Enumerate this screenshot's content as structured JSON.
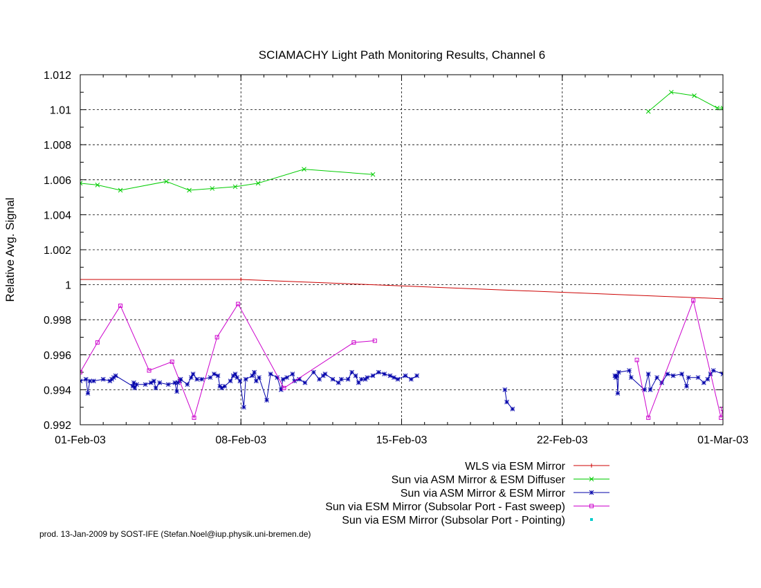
{
  "chart_data": {
    "type": "line",
    "title": "SCIAMACHY Light Path Monitoring Results, Channel 6",
    "xlabel": "",
    "ylabel": "Relative Avg. Signal",
    "x_type": "date",
    "xlim": [
      "2003-02-01",
      "2003-03-01"
    ],
    "ylim": [
      0.992,
      1.012
    ],
    "x_tick_labels": [
      "01-Feb-03",
      "08-Feb-03",
      "15-Feb-03",
      "22-Feb-03",
      "01-Mar-03"
    ],
    "x_tick_values": [
      "2003-02-01",
      "2003-02-08",
      "2003-02-15",
      "2003-02-22",
      "2003-03-01"
    ],
    "y_ticks": [
      0.992,
      0.994,
      0.996,
      0.998,
      1,
      1.002,
      1.004,
      1.006,
      1.008,
      1.01,
      1.012
    ],
    "y_tick_labels": [
      "0.992",
      "0.994",
      "0.996",
      "0.998",
      "1",
      "1.002",
      "1.004",
      "1.006",
      "1.008",
      "1.01",
      "1.012"
    ],
    "grid": true,
    "legend_position": "bottom-right",
    "series": [
      {
        "name": "WLS via ESM Mirror",
        "color": "#cc0000",
        "marker": "plus",
        "points": [
          [
            "2003-02-01 00:00",
            1.0003
          ],
          [
            "2003-02-08 00:00",
            1.0003
          ],
          [
            "2003-03-01 00:00",
            0.9992
          ]
        ]
      },
      {
        "name": "Sun via ASM Mirror & ESM Diffuser",
        "color": "#00cc00",
        "marker": "x",
        "segments": [
          [
            [
              "2003-02-01 00:00",
              1.0058
            ],
            [
              "2003-02-01 18:00",
              1.0057
            ],
            [
              "2003-02-02 18:00",
              1.0054
            ],
            [
              "2003-02-04 18:00",
              1.0059
            ],
            [
              "2003-02-05 18:00",
              1.0054
            ],
            [
              "2003-02-06 18:00",
              1.0055
            ],
            [
              "2003-02-07 18:00",
              1.0056
            ],
            [
              "2003-02-08 18:00",
              1.0058
            ],
            [
              "2003-02-10 18:00",
              1.0066
            ],
            [
              "2003-02-13 18:00",
              1.0063
            ]
          ],
          [
            [
              "2003-02-25 18:00",
              1.0099
            ],
            [
              "2003-02-26 18:00",
              1.011
            ],
            [
              "2003-02-27 18:00",
              1.0108
            ],
            [
              "2003-02-28 18:00",
              1.0101
            ],
            [
              "2003-03-01 00:00",
              1.0101
            ]
          ]
        ]
      },
      {
        "name": "Sun via ASM Mirror & ESM Mirror",
        "color": "#0000aa",
        "marker": "star",
        "segments": [
          [
            [
              "2003-02-01 00:00",
              0.9945
            ],
            [
              "2003-02-01 06:00",
              0.9946
            ],
            [
              "2003-02-01 08:00",
              0.9938
            ],
            [
              "2003-02-01 10:00",
              0.9945
            ],
            [
              "2003-02-01 14:00",
              0.9945
            ],
            [
              "2003-02-02 00:00",
              0.9946
            ],
            [
              "2003-02-02 07:00",
              0.9945
            ],
            [
              "2003-02-02 09:00",
              0.9946
            ],
            [
              "2003-02-02 11:00",
              0.9947
            ],
            [
              "2003-02-02 13:00",
              0.9948
            ],
            [
              "2003-02-03 07:00",
              0.9942
            ],
            [
              "2003-02-03 08:00",
              0.9944
            ],
            [
              "2003-02-03 09:00",
              0.9941
            ],
            [
              "2003-02-03 11:00",
              0.9943
            ],
            [
              "2003-02-03 20:00",
              0.9943
            ],
            [
              "2003-02-04 02:00",
              0.9944
            ],
            [
              "2003-02-04 05:00",
              0.9945
            ],
            [
              "2003-02-04 07:00",
              0.9941
            ],
            [
              "2003-02-04 11:00",
              0.9944
            ],
            [
              "2003-02-04 20:00",
              0.9943
            ],
            [
              "2003-02-05 03:00",
              0.9944
            ],
            [
              "2003-02-05 05:00",
              0.9939
            ],
            [
              "2003-02-05 06:00",
              0.9944
            ],
            [
              "2003-02-05 08:00",
              0.9945
            ],
            [
              "2003-02-05 09:00",
              0.9946
            ],
            [
              "2003-02-05 16:00",
              0.9943
            ],
            [
              "2003-02-05 20:00",
              0.9947
            ],
            [
              "2003-02-05 22:00",
              0.9949
            ],
            [
              "2003-02-06 02:00",
              0.9946
            ],
            [
              "2003-02-06 07:00",
              0.9946
            ],
            [
              "2003-02-06 16:00",
              0.9947
            ],
            [
              "2003-02-06 20:00",
              0.9949
            ],
            [
              "2003-02-07 00:00",
              0.9948
            ],
            [
              "2003-02-07 02:00",
              0.9942
            ],
            [
              "2003-02-07 04:00",
              0.9941
            ],
            [
              "2003-02-07 07:00",
              0.9942
            ],
            [
              "2003-02-07 13:00",
              0.9945
            ],
            [
              "2003-02-07 16:00",
              0.9948
            ],
            [
              "2003-02-07 18:00",
              0.9949
            ],
            [
              "2003-02-07 20:00",
              0.9947
            ],
            [
              "2003-02-07 23:00",
              0.9945
            ],
            [
              "2003-02-08 03:00",
              0.993
            ],
            [
              "2003-02-08 05:00",
              0.9946
            ],
            [
              "2003-02-08 12:00",
              0.9948
            ],
            [
              "2003-02-08 14:00",
              0.995
            ],
            [
              "2003-02-08 16:00",
              0.9945
            ],
            [
              "2003-02-08 19:00",
              0.9947
            ],
            [
              "2003-02-09 03:00",
              0.9934
            ],
            [
              "2003-02-09 07:00",
              0.9949
            ],
            [
              "2003-02-09 14:00",
              0.9947
            ],
            [
              "2003-02-09 18:00",
              0.994
            ],
            [
              "2003-02-09 20:00",
              0.9946
            ],
            [
              "2003-02-10 00:00",
              0.9947
            ],
            [
              "2003-02-10 06:00",
              0.9949
            ],
            [
              "2003-02-10 08:00",
              0.9945
            ],
            [
              "2003-02-10 13:00",
              0.9946
            ],
            [
              "2003-02-10 19:00",
              0.9944
            ],
            [
              "2003-02-11 04:00",
              0.995
            ],
            [
              "2003-02-11 10:00",
              0.9946
            ],
            [
              "2003-02-11 14:00",
              0.9948
            ],
            [
              "2003-02-11 16:00",
              0.9949
            ],
            [
              "2003-02-12 00:00",
              0.9946
            ],
            [
              "2003-02-12 06:00",
              0.9944
            ],
            [
              "2003-02-12 09:00",
              0.9946
            ],
            [
              "2003-02-12 16:00",
              0.9946
            ],
            [
              "2003-02-12 20:00",
              0.995
            ],
            [
              "2003-02-13 00:00",
              0.9948
            ],
            [
              "2003-02-13 03:00",
              0.9944
            ],
            [
              "2003-02-13 06:00",
              0.9946
            ],
            [
              "2003-02-13 10:00",
              0.9946
            ],
            [
              "2003-02-13 12:00",
              0.9947
            ],
            [
              "2003-02-13 18:00",
              0.9948
            ],
            [
              "2003-02-14 00:00",
              0.995
            ],
            [
              "2003-02-14 06:00",
              0.9949
            ],
            [
              "2003-02-14 12:00",
              0.9948
            ],
            [
              "2003-02-14 16:00",
              0.9947
            ],
            [
              "2003-02-14 20:00",
              0.9946
            ],
            [
              "2003-02-15 04:00",
              0.9948
            ],
            [
              "2003-02-15 10:00",
              0.9946
            ],
            [
              "2003-02-15 16:00",
              0.9948
            ]
          ],
          [
            [
              "2003-02-19 12:00",
              0.994
            ],
            [
              "2003-02-19 14:00",
              0.9933
            ],
            [
              "2003-02-19 20:00",
              0.9929
            ]
          ],
          [
            [
              "2003-02-24 07:00",
              0.9948
            ],
            [
              "2003-02-24 08:00",
              0.9947
            ],
            [
              "2003-02-24 09:00",
              0.9948
            ],
            [
              "2003-02-24 10:00",
              0.9938
            ],
            [
              "2003-02-24 11:00",
              0.995
            ],
            [
              "2003-02-24 22:00",
              0.9951
            ],
            [
              "2003-02-25 00:00",
              0.9947
            ],
            [
              "2003-02-25 14:00",
              0.994
            ],
            [
              "2003-02-25 18:00",
              0.9949
            ],
            [
              "2003-02-25 20:00",
              0.994
            ],
            [
              "2003-02-26 03:00",
              0.9947
            ],
            [
              "2003-02-26 08:00",
              0.9944
            ],
            [
              "2003-02-26 14:00",
              0.9949
            ],
            [
              "2003-02-26 20:00",
              0.9948
            ],
            [
              "2003-02-27 05:00",
              0.9949
            ],
            [
              "2003-02-27 10:00",
              0.9942
            ],
            [
              "2003-02-27 12:00",
              0.9947
            ],
            [
              "2003-02-27 22:00",
              0.9947
            ],
            [
              "2003-02-28 04:00",
              0.9944
            ],
            [
              "2003-02-28 08:00",
              0.9946
            ],
            [
              "2003-02-28 11:00",
              0.9949
            ],
            [
              "2003-02-28 14:00",
              0.9951
            ],
            [
              "2003-03-01 00:00",
              0.9949
            ]
          ]
        ]
      },
      {
        "name": "Sun via ESM Mirror (Subsolar Port - Fast sweep)",
        "color": "#cc00cc",
        "marker": "square",
        "segments": [
          [
            [
              "2003-02-01 00:00",
              0.995
            ],
            [
              "2003-02-01 18:00",
              0.9967
            ],
            [
              "2003-02-02 18:00",
              0.9988
            ],
            [
              "2003-02-04 00:00",
              0.9951
            ],
            [
              "2003-02-05 00:00",
              0.9956
            ],
            [
              "2003-02-05 23:00",
              0.9924
            ],
            [
              "2003-02-06 23:00",
              0.997
            ],
            [
              "2003-02-07 21:00",
              0.9989
            ],
            [
              "2003-02-09 21:00",
              0.9941
            ],
            [
              "2003-02-12 22:00",
              0.9967
            ],
            [
              "2003-02-13 20:00",
              0.9968
            ]
          ],
          [
            [
              "2003-02-25 06:00",
              0.9957
            ],
            [
              "2003-02-25 18:00",
              0.9924
            ],
            [
              "2003-02-27 17:00",
              0.9991
            ],
            [
              "2003-02-28 22:00",
              0.9924
            ],
            [
              "2003-03-01 00:00",
              0.9929
            ]
          ]
        ]
      },
      {
        "name": "Sun via ESM Mirror (Subsolar Port - Pointing)",
        "color": "#00cccc",
        "marker": "dot",
        "points": []
      }
    ]
  },
  "footer": "prod. 13-Jan-2009 by SOST-IFE (Stefan.Noel@iup.physik.uni-bremen.de)"
}
